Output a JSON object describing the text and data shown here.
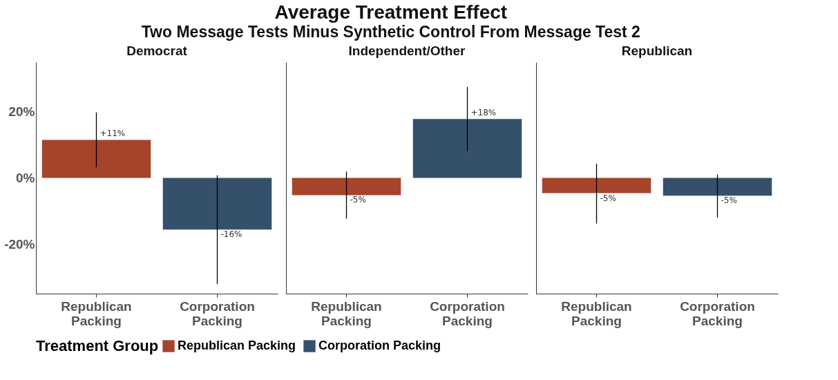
{
  "chart_data": [
    {
      "type": "bar",
      "title": "Democrat",
      "annotations": [
        "Average Treatment Effect",
        "Two Message Tests Minus Synthetic Control From Message Test 2"
      ],
      "categories": [
        "Republican Packing",
        "Corporation Packing"
      ],
      "series": [
        {
          "name": "Republican Packing",
          "color": "#a6432b",
          "values": [
            11.5,
            null
          ],
          "errors": [
            [
              3.2,
              19.8
            ],
            null
          ],
          "value_labels": [
            "+11%",
            null
          ]
        },
        {
          "name": "Corporation Packing",
          "color": "#34506b",
          "values": [
            null,
            -15.6
          ],
          "errors": [
            null,
            [
              -32.1,
              0.8
            ]
          ],
          "value_labels": [
            null,
            "-16%"
          ]
        }
      ],
      "ylim": [
        -35,
        35
      ],
      "yticks": [
        {
          "value": -20,
          "label": "-20%"
        },
        {
          "value": 0,
          "label": "0%"
        },
        {
          "value": 20,
          "label": "20%"
        }
      ],
      "legend_title": "Treatment Group",
      "legend": "bottom",
      "grid": false
    },
    {
      "type": "bar",
      "title": "Independent/Other",
      "categories": [
        "Republican Packing",
        "Corporation Packing"
      ],
      "series": [
        {
          "color": "#a6432b",
          "values": [
            -5.2,
            null
          ],
          "errors": [
            [
              -12.3,
              1.9
            ],
            null
          ],
          "value_labels": [
            "-5%",
            null
          ]
        },
        {
          "color": "#34506b",
          "values": [
            null,
            17.8
          ],
          "errors": [
            null,
            [
              8.1,
              27.5
            ]
          ],
          "value_labels": [
            null,
            "+18%"
          ]
        }
      ],
      "ylim": [
        -35,
        35
      ],
      "tick_labels": "x",
      "grid": false
    },
    {
      "type": "bar",
      "title": "Republican",
      "categories": [
        "Republican Packing",
        "Corporation Packing"
      ],
      "series": [
        {
          "color": "#a6432b",
          "values": [
            -4.6,
            null
          ],
          "errors": [
            [
              -13.8,
              4.3
            ],
            null
          ],
          "value_labels": [
            "-5%",
            null
          ]
        },
        {
          "color": "#34506b",
          "values": [
            null,
            -5.4
          ],
          "errors": [
            null,
            [
              -12.0,
              1.0
            ]
          ],
          "value_labels": [
            null,
            "-5%"
          ]
        }
      ],
      "ylim": [
        -35,
        35
      ],
      "tick_labels": "x",
      "grid": false
    }
  ]
}
